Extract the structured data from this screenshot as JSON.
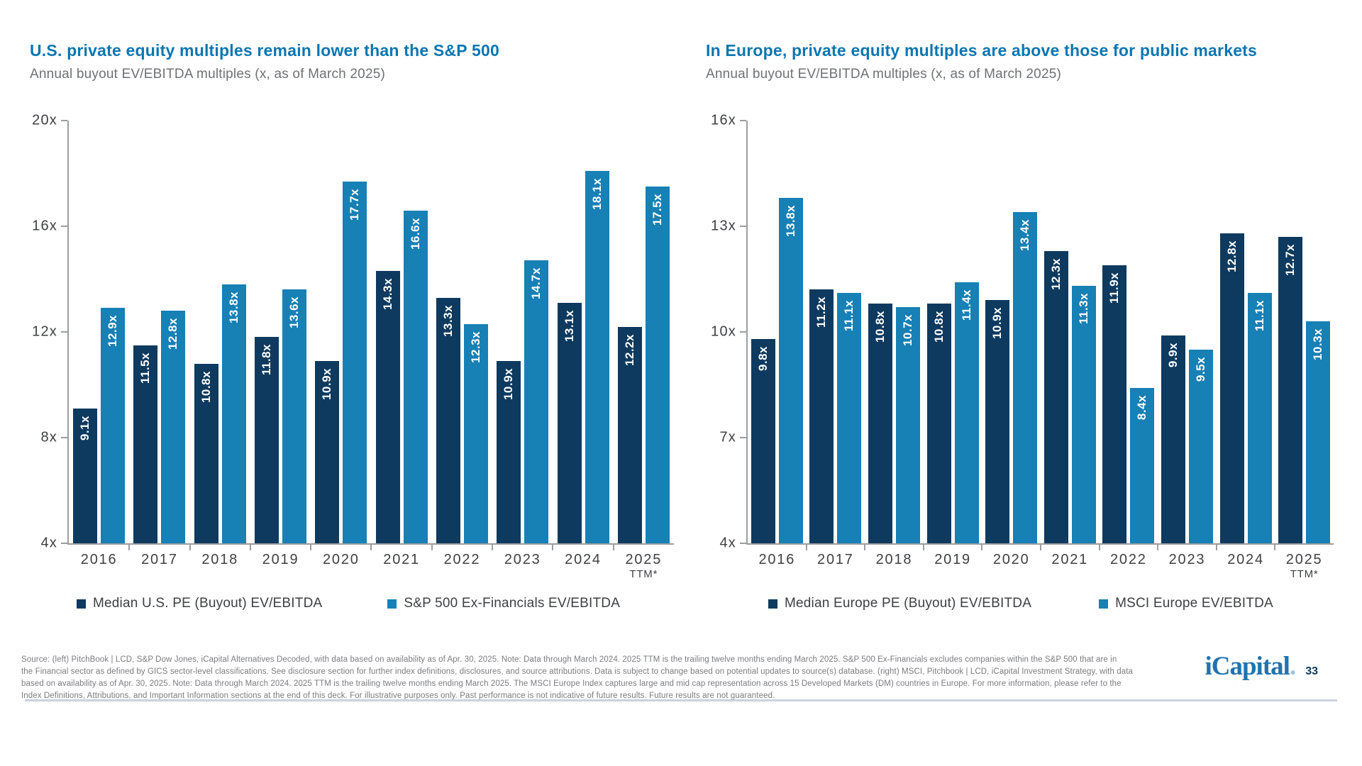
{
  "colors": {
    "dark_bar": "#0E3A5F",
    "light_bar": "#1780B5",
    "title_blue": "#0B76B1",
    "axis_gray": "#9B9DA0",
    "brand_blue": "#2173AE"
  },
  "chart_data": [
    {
      "type": "bar",
      "title": "U.S. private equity multiples remain lower than the S&P 500",
      "subtitle": "Annual buyout EV/EBITDA multiples (x, as of March 2025)",
      "categories": [
        "2016",
        "2017",
        "2018",
        "2019",
        "2020",
        "2021",
        "2022",
        "2023",
        "2024",
        "2025"
      ],
      "category_sublabels": [
        "",
        "",
        "",
        "",
        "",
        "",
        "",
        "",
        "",
        "TTM*"
      ],
      "series": [
        {
          "name": "Median U.S. PE (Buyout) EV/EBITDA",
          "color": "#0E3A5F",
          "values": [
            9.1,
            11.5,
            10.8,
            11.8,
            10.9,
            14.3,
            13.3,
            10.9,
            13.1,
            12.2
          ]
        },
        {
          "name": "S&P 500 Ex-Financials EV/EBITDA",
          "color": "#1780B5",
          "values": [
            12.9,
            12.8,
            13.8,
            13.6,
            17.7,
            16.6,
            12.3,
            14.7,
            18.1,
            17.5
          ]
        }
      ],
      "ylim": [
        4,
        20
      ],
      "yticks": [
        4,
        8,
        12,
        16,
        20
      ],
      "ytick_labels": [
        "4x",
        "8x",
        "12x",
        "16x",
        "20x"
      ],
      "value_suffix": "x",
      "grid": false,
      "legend_position": "bottom"
    },
    {
      "type": "bar",
      "title": "In Europe, private equity multiples are above those for public markets",
      "subtitle": "Annual buyout EV/EBITDA multiples (x, as of March 2025)",
      "categories": [
        "2016",
        "2017",
        "2018",
        "2019",
        "2020",
        "2021",
        "2022",
        "2023",
        "2024",
        "2025"
      ],
      "category_sublabels": [
        "",
        "",
        "",
        "",
        "",
        "",
        "",
        "",
        "",
        "TTM*"
      ],
      "series": [
        {
          "name": "Median Europe PE (Buyout) EV/EBITDA",
          "color": "#0E3A5F",
          "values": [
            9.8,
            11.2,
            10.8,
            10.8,
            10.9,
            12.3,
            11.9,
            9.9,
            12.8,
            12.7
          ]
        },
        {
          "name": "MSCI Europe EV/EBITDA",
          "color": "#1780B5",
          "values": [
            13.8,
            11.1,
            10.7,
            11.4,
            13.4,
            11.3,
            8.4,
            9.5,
            11.1,
            10.3
          ]
        }
      ],
      "ylim": [
        4,
        16
      ],
      "yticks": [
        4,
        7,
        10,
        13,
        16
      ],
      "ytick_labels": [
        "4x",
        "7x",
        "10x",
        "13x",
        "16x"
      ],
      "value_suffix": "x",
      "grid": false,
      "legend_position": "bottom"
    }
  ],
  "footer": {
    "lines": [
      "Source: (left) PitchBook | LCD, S&P Dow Jones, iCapital Alternatives Decoded, with data based on availability as of Apr. 30, 2025. Note: Data through March 2024. 2025 TTM is the trailing twelve months ending March 2025. S&P 500 Ex-Financials excludes companies within the S&P 500 that are in",
      "the Financial sector as defined by GICS sector-level classifications. See disclosure section for further index definitions, disclosures, and source attributions. Data is subject to change based on potential updates to source(s) database. (right) MSCI, Pitchbook | LCD, iCapital Investment Strategy, with data",
      "based on availability as of Apr. 30, 2025. Note: Data through March 2024. 2025 TTM is the trailing twelve months ending March 2025. The MSCI Europe Index captures large and mid cap representation across 15 Developed Markets (DM) countries in Europe. For more information, please refer to the",
      "Index Definitions, Attributions, and Important Information sections at the end of this deck. For illustrative purposes only. Past performance is not indicative of future results. Future results are not guaranteed."
    ]
  },
  "brand": {
    "wordmark": "iCapital",
    "wordmark_dot": ".",
    "page_number": "33"
  }
}
